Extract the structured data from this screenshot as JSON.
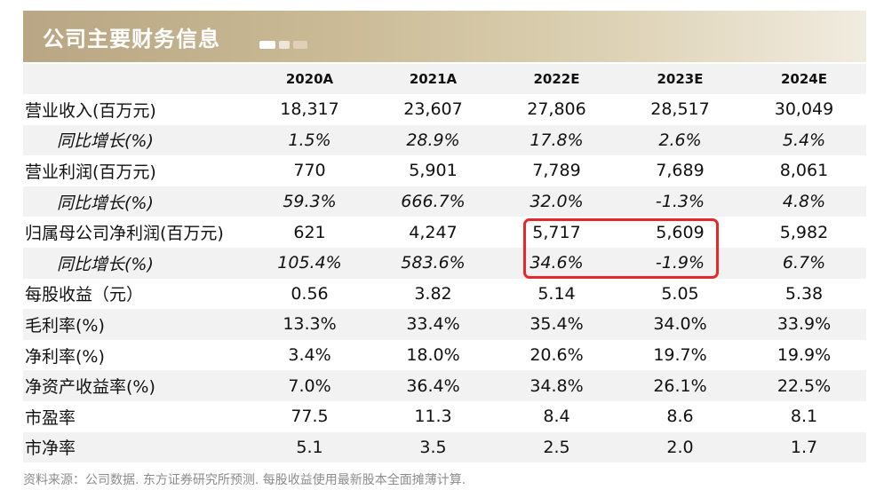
{
  "title": "公司主要财务信息",
  "headers": [
    "",
    "2020A",
    "2021A",
    "2022E",
    "2023E",
    "2024E"
  ],
  "rows": [
    {
      "label": "营业收入(百万元)",
      "values": [
        "18,317",
        "23,607",
        "27,806",
        "28,517",
        "30,049"
      ],
      "italic": false,
      "shade": false
    },
    {
      "label": "同比增长(%)",
      "values": [
        "1.5%",
        "28.9%",
        "17.8%",
        "2.6%",
        "5.4%"
      ],
      "italic": true,
      "shade": true
    },
    {
      "label": "营业利润(百万元)",
      "values": [
        "770",
        "5,901",
        "7,789",
        "7,689",
        "8,061"
      ],
      "italic": false,
      "shade": false
    },
    {
      "label": "同比增长(%)",
      "values": [
        "59.3%",
        "666.7%",
        "32.0%",
        "-1.3%",
        "4.8%"
      ],
      "italic": true,
      "shade": true
    },
    {
      "label": "归属母公司净利润(百万元)",
      "values": [
        "621",
        "4,247",
        "5,717",
        "5,609",
        "5,982"
      ],
      "italic": false,
      "shade": false
    },
    {
      "label": "同比增长(%)",
      "values": [
        "105.4%",
        "583.6%",
        "34.6%",
        "-1.9%",
        "6.7%"
      ],
      "italic": true,
      "shade": true
    },
    {
      "label": "每股收益（元）",
      "values": [
        "0.56",
        "3.82",
        "5.14",
        "5.05",
        "5.38"
      ],
      "italic": false,
      "shade": false
    },
    {
      "label": "毛利率(%)",
      "values": [
        "13.3%",
        "33.4%",
        "35.4%",
        "34.0%",
        "33.9%"
      ],
      "italic": false,
      "shade": true
    },
    {
      "label": "净利率(%)",
      "values": [
        "3.4%",
        "18.0%",
        "20.6%",
        "19.7%",
        "19.9%"
      ],
      "italic": false,
      "shade": false
    },
    {
      "label": "净资产收益率(%)",
      "values": [
        "7.0%",
        "36.4%",
        "34.8%",
        "26.1%",
        "22.5%"
      ],
      "italic": false,
      "shade": true
    },
    {
      "label": "市盈率",
      "values": [
        "77.5",
        "11.3",
        "8.4",
        "8.6",
        "8.1"
      ],
      "italic": false,
      "shade": false
    },
    {
      "label": "市净率",
      "values": [
        "5.1",
        "3.5",
        "2.5",
        "2.0",
        "1.7"
      ],
      "italic": false,
      "shade": true
    }
  ],
  "footnote": "资料来源：公司数据. 东方证券研究所预测. 每股收益使用最新股本全面摊薄计算.",
  "colors": {
    "banner": "#c9b994",
    "highlight": "#e8272a",
    "shade": "#f2f2f2",
    "footnote": "#8c8c8c"
  }
}
